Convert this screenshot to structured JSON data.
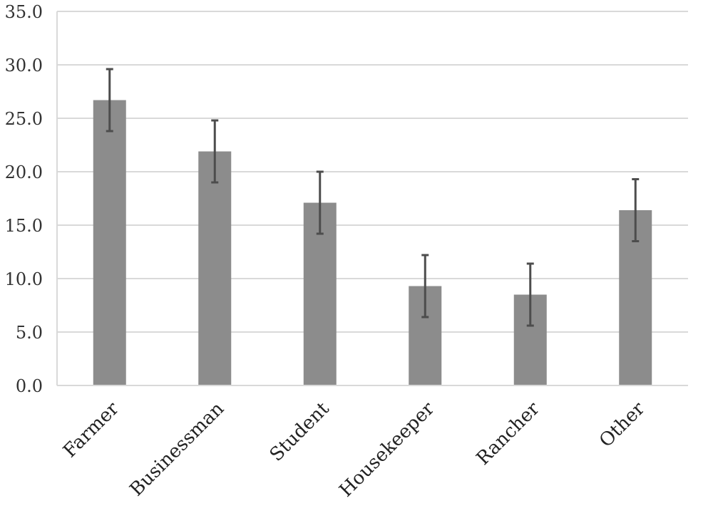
{
  "chart_data": {
    "type": "bar",
    "title": "",
    "xlabel": "",
    "ylabel": "",
    "categories": [
      "Farmer",
      "Businessman",
      "Student",
      "Housekeeper",
      "Rancher",
      "Other"
    ],
    "values": [
      26.7,
      21.9,
      17.1,
      9.3,
      8.5,
      16.4
    ],
    "error": [
      2.9,
      2.9,
      2.9,
      2.9,
      2.9,
      2.9
    ],
    "ylim": [
      0,
      35
    ],
    "yticks": [
      0,
      5,
      10,
      15,
      20,
      25,
      30,
      35
    ],
    "ytick_labels": [
      "0.0",
      "5.0",
      "10.0",
      "15.0",
      "20.0",
      "25.0",
      "30.0",
      "35.0"
    ],
    "grid": true,
    "legend": "none",
    "colors": {
      "bar": "#8c8c8c",
      "error_bar": "#4d4d4d",
      "grid": "#d9d9d9",
      "axis": "#d9d9d9"
    }
  }
}
